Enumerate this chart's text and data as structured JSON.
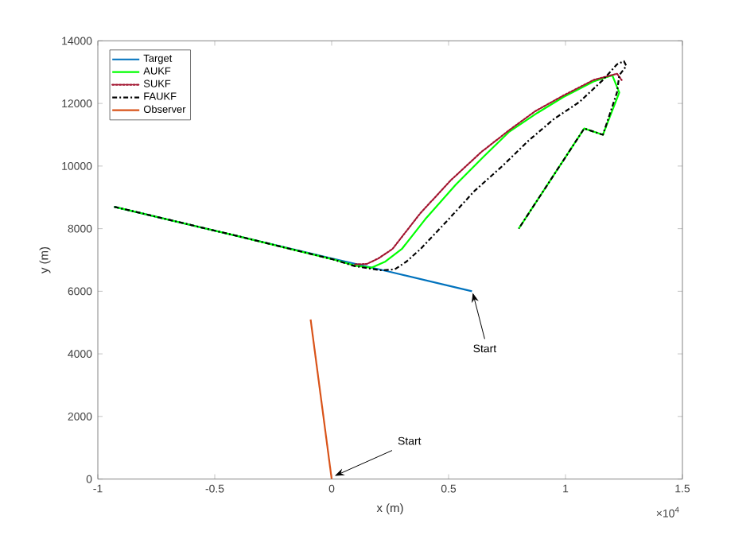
{
  "chart_data": {
    "type": "line",
    "xlabel": "x (m)",
    "ylabel": "y (m)",
    "xlim": [
      -1,
      1.5
    ],
    "xticks": [
      -1,
      -0.5,
      0,
      0.5,
      1,
      1.5
    ],
    "ylim": [
      0,
      14000
    ],
    "yticks": [
      0,
      2000,
      4000,
      6000,
      8000,
      10000,
      12000,
      14000
    ],
    "grid": false,
    "legend": "top left",
    "series": [
      {
        "name": "Target",
        "color": "#0072bd",
        "x": [
          0.6,
          0.25,
          0,
          -0.93
        ],
        "values": [
          6000,
          6620,
          7050,
          8700
        ]
      },
      {
        "name": "AUKF",
        "color": "#00ff00",
        "x": [
          -0.93,
          -0.4,
          0,
          0.1,
          0.17,
          0.23,
          0.3,
          0.4,
          0.53,
          0.65,
          0.76,
          0.88,
          0.99,
          1.12,
          1.2,
          1.23,
          1.16,
          1.08,
          0.8
        ],
        "values": [
          8700,
          7760,
          7030,
          6820,
          6750,
          6950,
          7350,
          8300,
          9400,
          10300,
          11100,
          11700,
          12200,
          12700,
          12900,
          12350,
          11000,
          11200,
          8000
        ]
      },
      {
        "name": "SUKF",
        "color": "#a2142f",
        "line_style": "dotted",
        "x": [
          0.1,
          0.15,
          0.2,
          0.26,
          0.38,
          0.51,
          0.64,
          0.76,
          0.87,
          0.99,
          1.12,
          1.22,
          1.24
        ],
        "values": [
          6860,
          6870,
          7050,
          7350,
          8500,
          9550,
          10450,
          11150,
          11750,
          12250,
          12750,
          12950,
          12750
        ]
      },
      {
        "name": "FAUKF",
        "color": "#000000",
        "line_style": "dashed",
        "x": [
          -0.93,
          -0.4,
          0,
          0.1,
          0.21,
          0.27,
          0.32,
          0.38,
          0.5,
          0.61,
          0.73,
          0.84,
          0.95,
          1.06,
          1.16,
          1.22,
          1.25,
          1.26,
          1.23,
          1.22,
          1.16,
          1.08,
          0.8
        ],
        "values": [
          8700,
          7760,
          7030,
          6800,
          6670,
          6700,
          6950,
          7350,
          8300,
          9200,
          10000,
          10800,
          11500,
          12050,
          12750,
          13250,
          13350,
          13200,
          12900,
          12350,
          11000,
          11200,
          8000
        ]
      },
      {
        "name": "Observer",
        "color": "#d95319",
        "x": [
          0,
          -0.09
        ],
        "values": [
          0,
          5100
        ]
      }
    ],
    "annotations": [
      {
        "text": "Start",
        "x": 0.6,
        "y": 6000
      },
      {
        "text": "Start",
        "x": 0,
        "y": 0
      },
      "×10$^{4}$"
    ]
  }
}
